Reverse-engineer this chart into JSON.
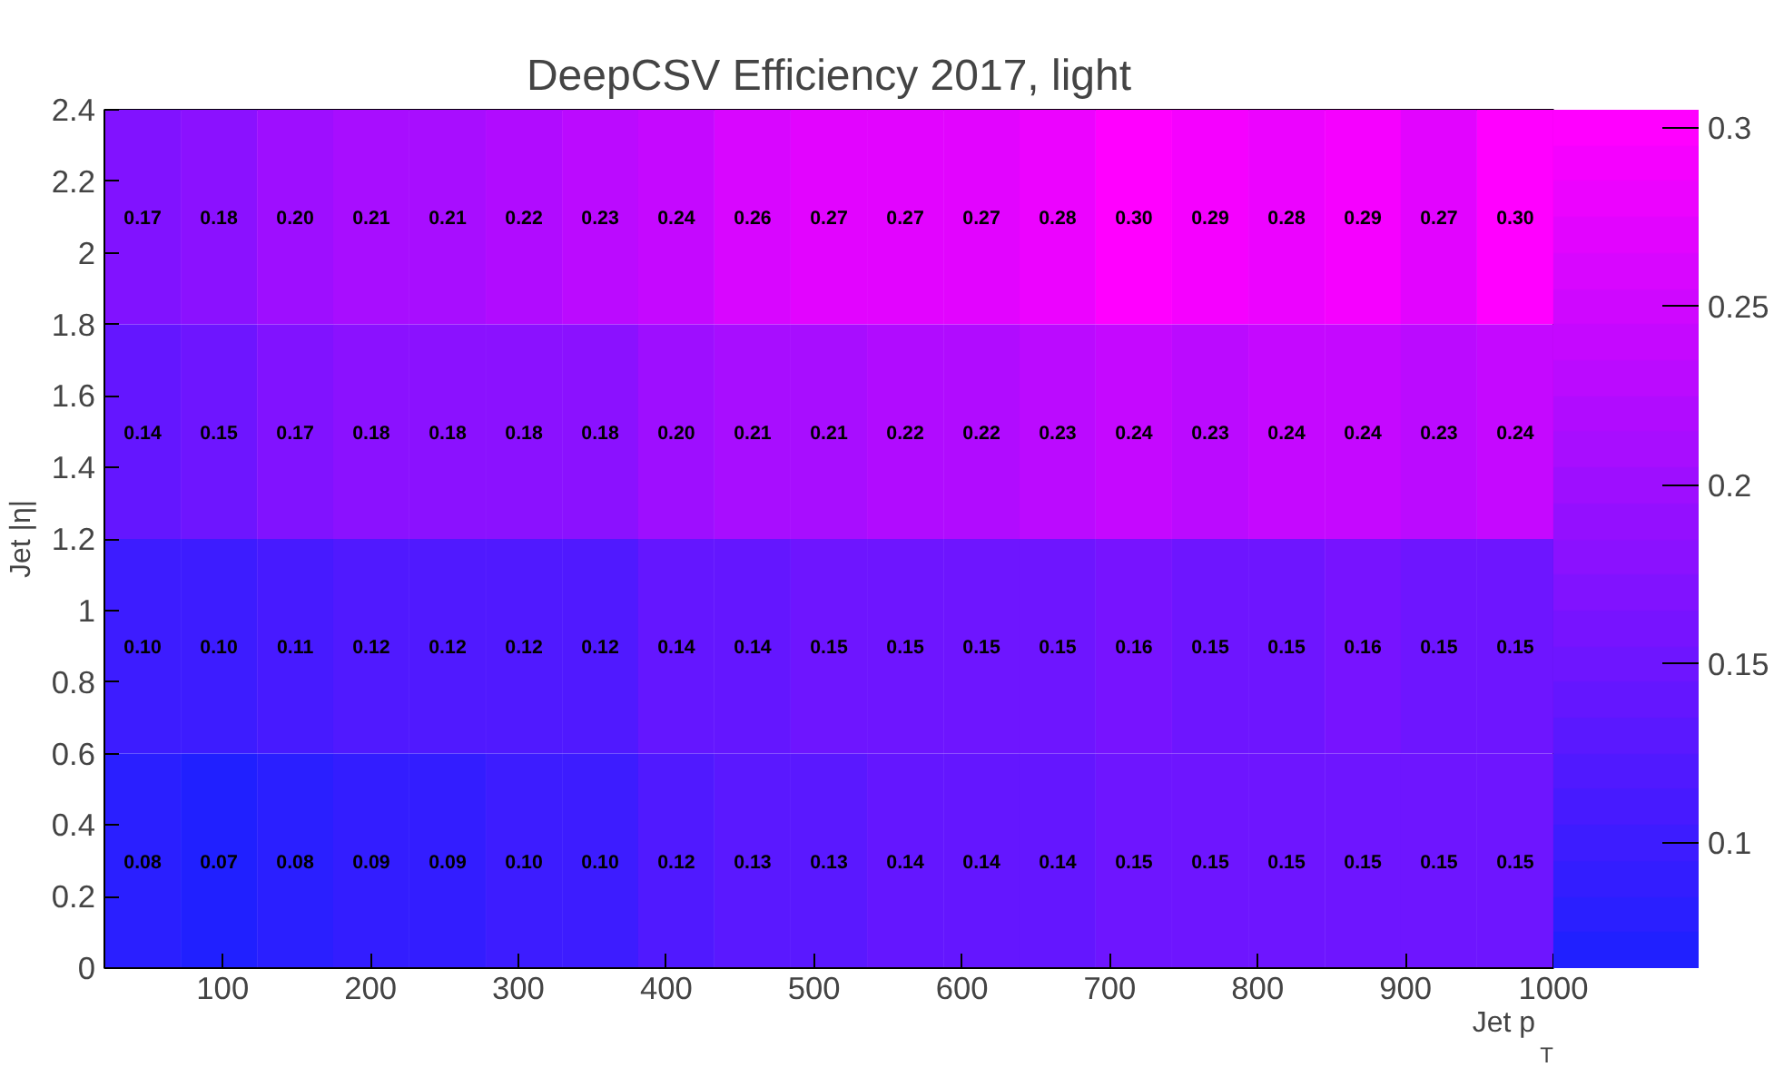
{
  "chart_data": {
    "type": "heatmap",
    "title": "DeepCSV Efficiency 2017, light",
    "xlabel": "Jet p$_{T}$",
    "ylabel": "Jet |η|",
    "x": [
      45.8,
      97.4,
      149.0,
      200.5,
      252.1,
      303.7,
      355.3,
      406.8,
      458.4,
      510.0,
      561.6,
      613.2,
      664.7,
      716.3,
      767.9,
      819.5,
      871.1,
      922.6,
      974.2
    ],
    "y": [
      2.1,
      1.5,
      0.9,
      0.3
    ],
    "cells": [
      [
        0.17,
        0.18,
        0.2,
        0.21,
        0.21,
        0.22,
        0.23,
        0.24,
        0.26,
        0.27,
        0.27,
        0.27,
        0.28,
        0.3,
        0.29,
        0.28,
        0.29,
        0.27,
        0.3
      ],
      [
        0.14,
        0.15,
        0.17,
        0.18,
        0.18,
        0.18,
        0.18,
        0.2,
        0.21,
        0.21,
        0.22,
        0.22,
        0.23,
        0.24,
        0.23,
        0.24,
        0.24,
        0.23,
        0.24
      ],
      [
        0.1,
        0.1,
        0.11,
        0.12,
        0.12,
        0.12,
        0.12,
        0.14,
        0.14,
        0.15,
        0.15,
        0.15,
        0.15,
        0.16,
        0.15,
        0.15,
        0.16,
        0.15,
        0.15
      ],
      [
        0.08,
        0.07,
        0.08,
        0.09,
        0.09,
        0.1,
        0.1,
        0.12,
        0.13,
        0.13,
        0.14,
        0.14,
        0.14,
        0.15,
        0.15,
        0.15,
        0.15,
        0.15,
        0.15
      ]
    ],
    "cell_labels": [
      [
        "0.17",
        "0.18",
        "0.20",
        "0.21",
        "0.21",
        "0.22",
        "0.23",
        "0.24",
        "0.26",
        "0.27",
        "0.27",
        "0.27",
        "0.28",
        "0.30",
        "0.29",
        "0.28",
        "0.29",
        "0.27",
        "0.30"
      ],
      [
        "0.14",
        "0.15",
        "0.17",
        "0.18",
        "0.18",
        "0.18",
        "0.18",
        "0.20",
        "0.21",
        "0.21",
        "0.22",
        "0.22",
        "0.23",
        "0.24",
        "0.23",
        "0.24",
        "0.24",
        "0.23",
        "0.24"
      ],
      [
        "0.10",
        "0.10",
        "0.11",
        "0.12",
        "0.12",
        "0.12",
        "0.12",
        "0.14",
        "0.14",
        "0.15",
        "0.15",
        "0.15",
        "0.15",
        "0.16",
        "0.15",
        "0.15",
        "0.16",
        "0.15",
        "0.15"
      ],
      [
        "0.08",
        "0.07",
        "0.08",
        "0.09",
        "0.09",
        "0.10",
        "0.10",
        "0.12",
        "0.13",
        "0.13",
        "0.14",
        "0.14",
        "0.14",
        "0.15",
        "0.15",
        "0.15",
        "0.15",
        "0.15",
        "0.15"
      ]
    ],
    "data_labels": true,
    "xlim": [
      20,
      1000
    ],
    "xticks": [
      100,
      200,
      300,
      400,
      500,
      600,
      700,
      800,
      900,
      1000
    ],
    "ylim": [
      0,
      2.4
    ],
    "yticks": [
      0,
      0.2,
      0.4,
      0.6,
      0.8,
      1,
      1.2,
      1.4,
      1.6,
      1.8,
      2,
      2.2,
      2.4
    ],
    "clim": [
      0.065,
      0.305
    ],
    "cticks": [
      0.1,
      0.15,
      0.2,
      0.25,
      0.3
    ]
  }
}
